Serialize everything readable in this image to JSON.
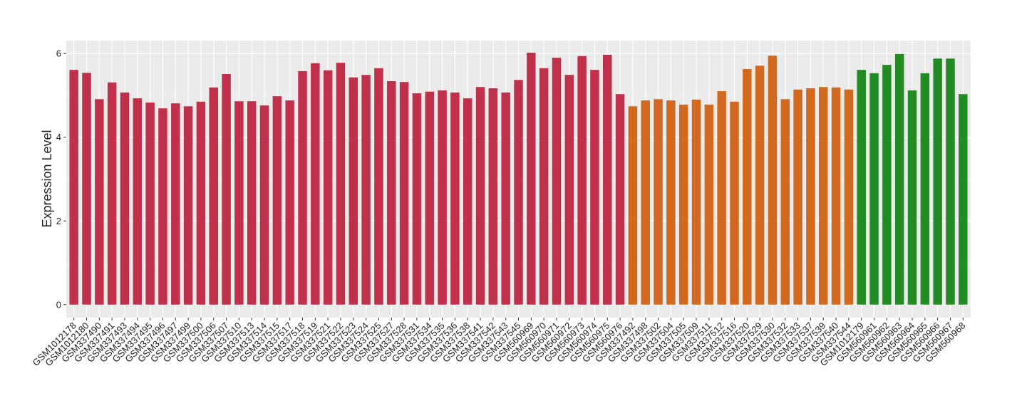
{
  "chart_data": {
    "type": "bar",
    "y_label": "Expression Level",
    "categories": [
      "GSM1012178",
      "GSM1012180",
      "GSM337490",
      "GSM337491",
      "GSM337493",
      "GSM337494",
      "GSM337495",
      "GSM337496",
      "GSM337497",
      "GSM337499",
      "GSM337500",
      "GSM337506",
      "GSM337507",
      "GSM337510",
      "GSM337513",
      "GSM337514",
      "GSM337515",
      "GSM337517",
      "GSM337518",
      "GSM337519",
      "GSM337521",
      "GSM337522",
      "GSM337523",
      "GSM337524",
      "GSM337525",
      "GSM337527",
      "GSM337528",
      "GSM337531",
      "GSM337534",
      "GSM337535",
      "GSM337536",
      "GSM337538",
      "GSM337541",
      "GSM337542",
      "GSM337543",
      "GSM337545",
      "GSM560969",
      "GSM560970",
      "GSM560971",
      "GSM560972",
      "GSM560973",
      "GSM560974",
      "GSM560975",
      "GSM560976",
      "GSM337492",
      "GSM337498",
      "GSM337502",
      "GSM337504",
      "GSM337505",
      "GSM337509",
      "GSM337511",
      "GSM337512",
      "GSM337516",
      "GSM337520",
      "GSM337529",
      "GSM337530",
      "GSM337532",
      "GSM337533",
      "GSM337537",
      "GSM337539",
      "GSM337540",
      "GSM337544",
      "GSM1012179",
      "GSM560961",
      "GSM560962",
      "GSM560963",
      "GSM560964",
      "GSM560965",
      "GSM560966",
      "GSM560967",
      "GSM560968"
    ],
    "values": [
      5.61,
      5.54,
      4.91,
      5.31,
      5.07,
      4.93,
      4.83,
      4.69,
      4.81,
      4.74,
      4.85,
      5.19,
      5.51,
      4.86,
      4.86,
      4.76,
      4.98,
      4.88,
      5.58,
      5.77,
      5.6,
      5.78,
      5.43,
      5.49,
      5.65,
      5.34,
      5.32,
      5.05,
      5.09,
      5.12,
      5.07,
      4.93,
      5.2,
      5.17,
      5.07,
      5.37,
      6.02,
      5.65,
      5.9,
      5.49,
      5.94,
      5.61,
      5.97,
      5.03,
      4.74,
      4.88,
      4.91,
      4.88,
      4.78,
      4.9,
      4.78,
      5.1,
      4.85,
      5.63,
      5.71,
      5.95,
      4.91,
      5.14,
      5.17,
      5.2,
      5.19,
      5.14,
      5.61,
      5.53,
      5.73,
      5.99,
      5.12,
      5.53,
      5.88,
      5.88,
      5.03
    ],
    "colors": [
      "#c1304a",
      "#c1304a",
      "#c1304a",
      "#c1304a",
      "#c1304a",
      "#c1304a",
      "#c1304a",
      "#c1304a",
      "#c1304a",
      "#c1304a",
      "#c1304a",
      "#c1304a",
      "#c1304a",
      "#c1304a",
      "#c1304a",
      "#c1304a",
      "#c1304a",
      "#c1304a",
      "#c1304a",
      "#c1304a",
      "#c1304a",
      "#c1304a",
      "#c1304a",
      "#c1304a",
      "#c1304a",
      "#c1304a",
      "#c1304a",
      "#c1304a",
      "#c1304a",
      "#c1304a",
      "#c1304a",
      "#c1304a",
      "#c1304a",
      "#c1304a",
      "#c1304a",
      "#c1304a",
      "#c1304a",
      "#c1304a",
      "#c1304a",
      "#c1304a",
      "#c1304a",
      "#c1304a",
      "#c1304a",
      "#c1304a",
      "#d2691e",
      "#d2691e",
      "#d2691e",
      "#d2691e",
      "#d2691e",
      "#d2691e",
      "#d2691e",
      "#d2691e",
      "#d2691e",
      "#d2691e",
      "#d2691e",
      "#d2691e",
      "#d2691e",
      "#d2691e",
      "#d2691e",
      "#d2691e",
      "#d2691e",
      "#d2691e",
      "#228b22",
      "#228b22",
      "#228b22",
      "#228b22",
      "#228b22",
      "#228b22",
      "#228b22",
      "#228b22",
      "#228b22"
    ],
    "ylim": [
      -0.31,
      6.31
    ],
    "yticks": [
      0,
      2,
      4,
      6
    ],
    "grid": true
  }
}
